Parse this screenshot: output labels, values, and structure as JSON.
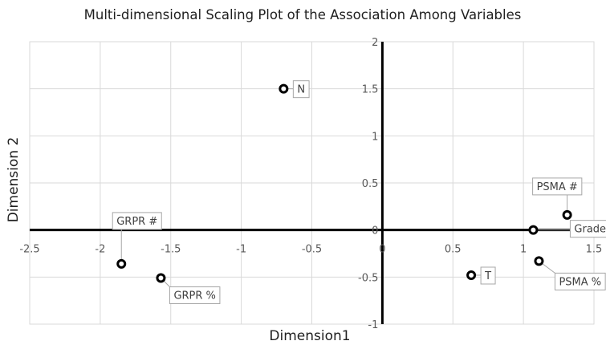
{
  "chart_data": {
    "type": "scatter",
    "title": "Multi-dimensional Scaling Plot of the Association Among Variables",
    "xlabel": "Dimension1",
    "ylabel": "Dimension 2",
    "xlim": [
      -2.5,
      1.5
    ],
    "ylim": [
      -1,
      2
    ],
    "xticks": [
      -2.5,
      -2,
      -1.5,
      -1,
      -0.5,
      0,
      0.5,
      1,
      1.5
    ],
    "xtick_labels": [
      "-2.5",
      "-2",
      "-1.5",
      "-1",
      "-0.5",
      "0",
      "0.5",
      "1",
      "1.5"
    ],
    "yticks": [
      -1,
      -0.5,
      0,
      0.5,
      1,
      1.5,
      2
    ],
    "ytick_labels": [
      "-1",
      "-0.5",
      "0",
      "0.5",
      "1",
      "1.5",
      "2"
    ],
    "grid": true,
    "points": [
      {
        "label": "N",
        "x": -0.7,
        "y": 1.5
      },
      {
        "label": "GRPR #",
        "x": -1.85,
        "y": -0.36
      },
      {
        "label": "GRPR %",
        "x": -1.57,
        "y": -0.51
      },
      {
        "label": "T",
        "x": 0.63,
        "y": -0.48
      },
      {
        "label": "Grade",
        "x": 1.07,
        "y": 0.0
      },
      {
        "label": "PSMA #",
        "x": 1.31,
        "y": 0.16
      },
      {
        "label": "PSMA %",
        "x": 1.11,
        "y": -0.33
      }
    ],
    "colors": {
      "marker": "#000000",
      "axis": "#000000",
      "grid": "#d9d9d9"
    }
  }
}
